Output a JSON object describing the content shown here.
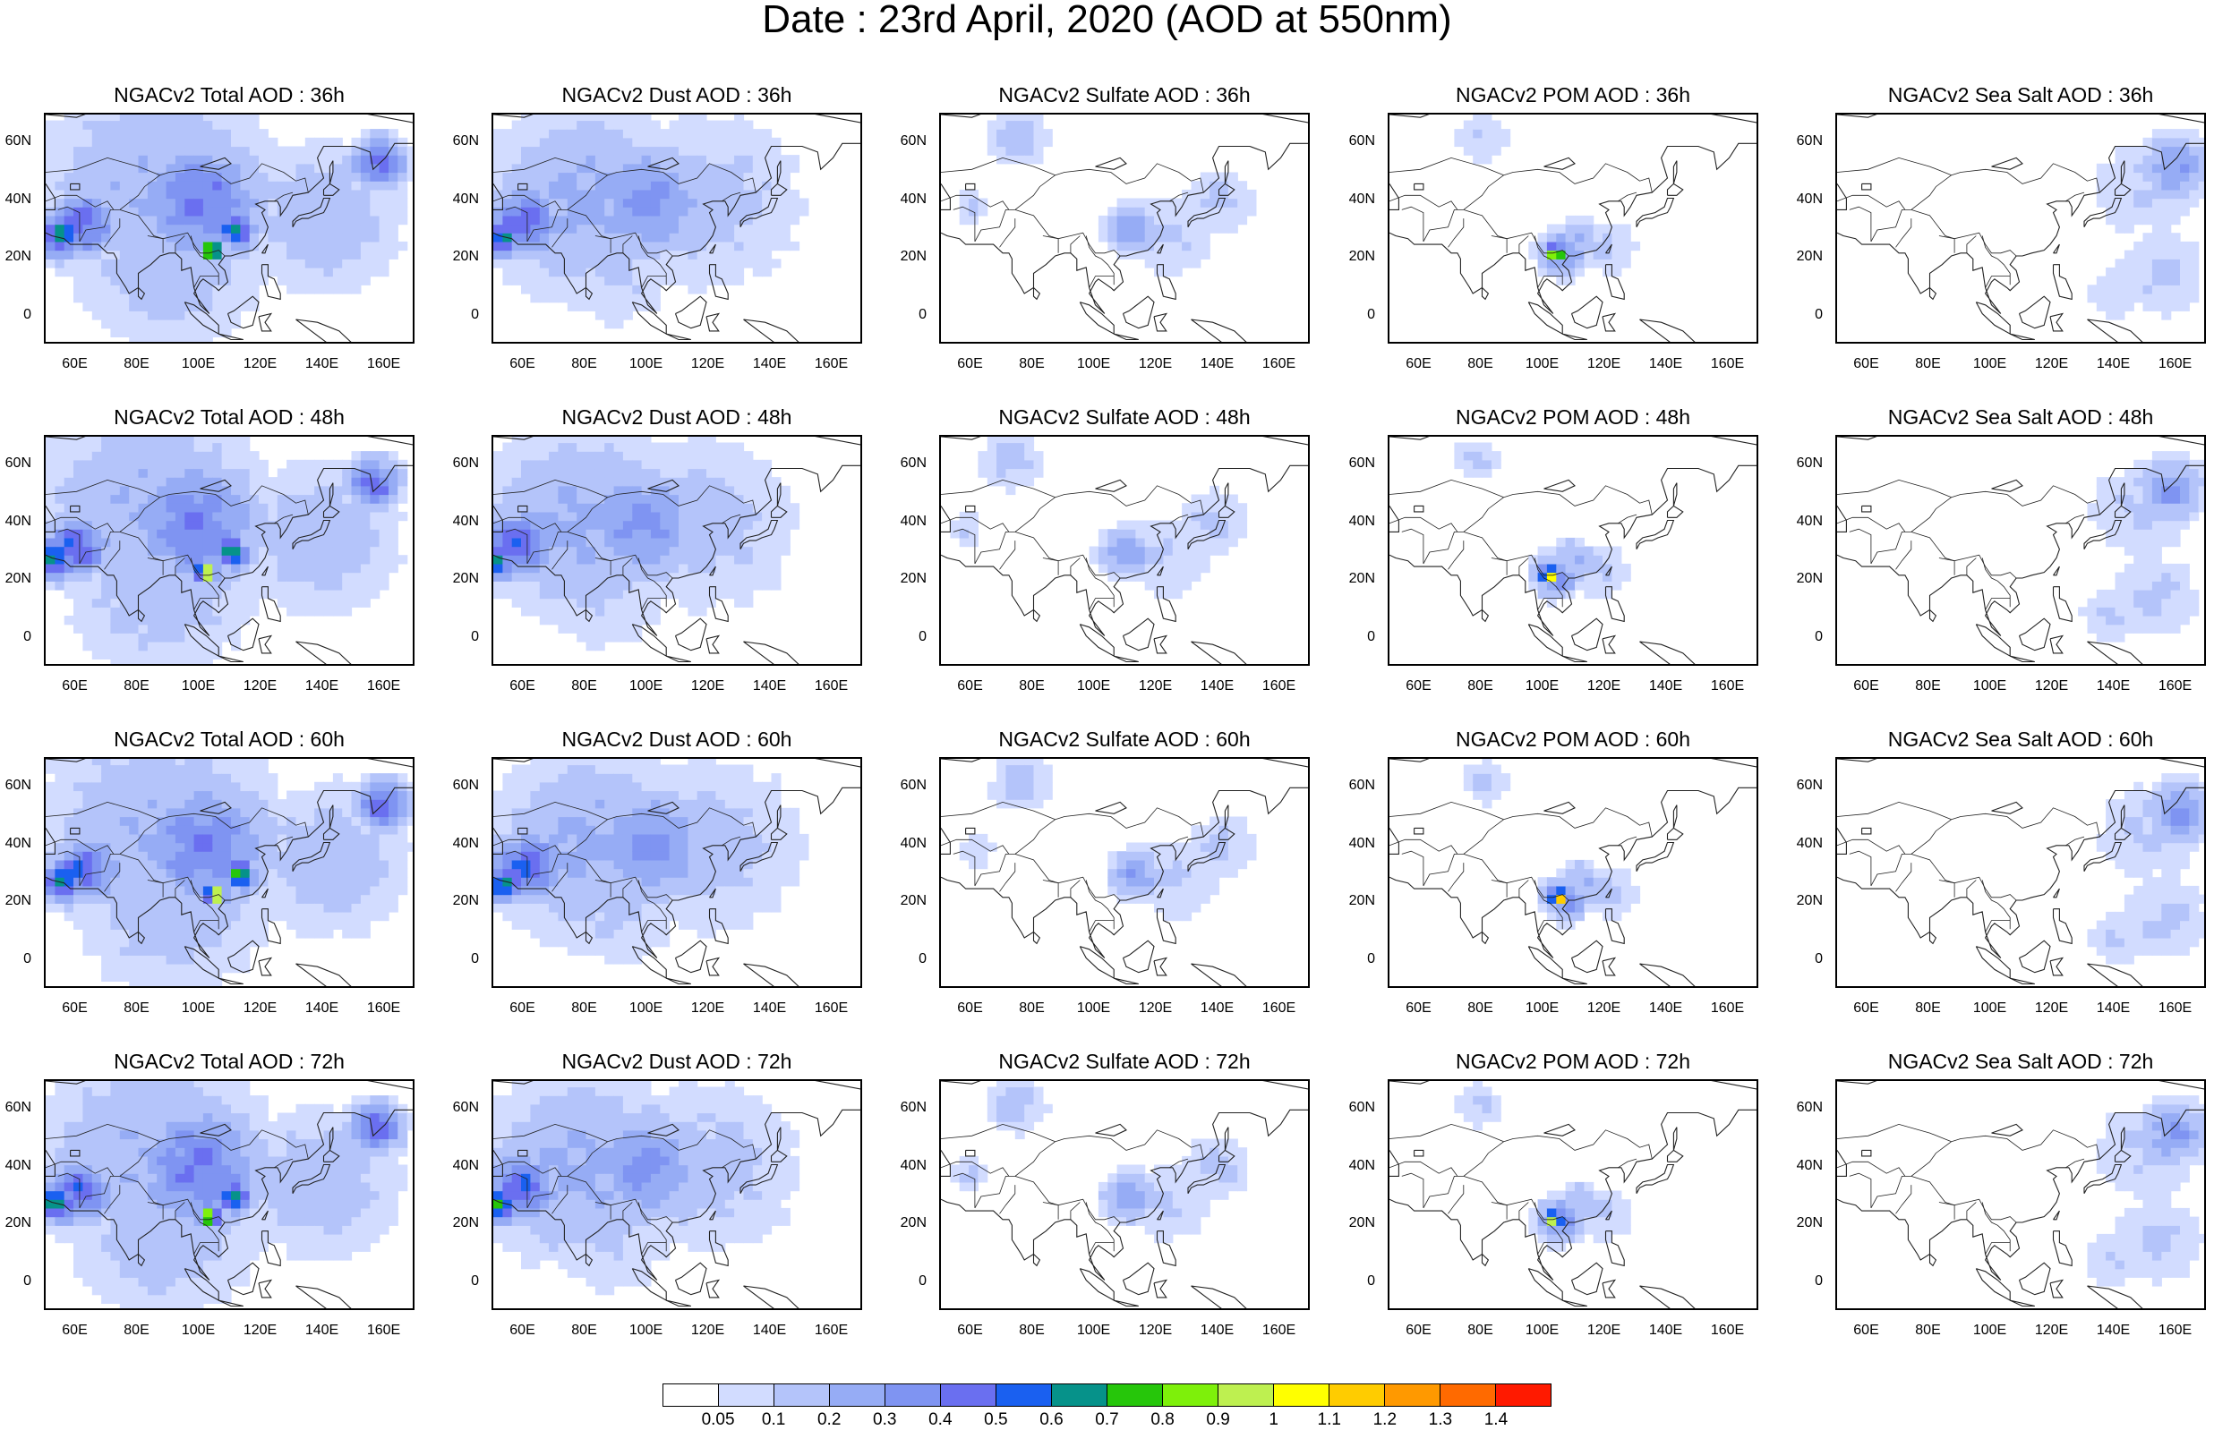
{
  "title": "Date : 23rd April, 2020 (AOD at 550nm)",
  "y_ticks": [
    "60N",
    "40N",
    "20N",
    "0"
  ],
  "y_tick_values": [
    60,
    40,
    20,
    0
  ],
  "x_ticks": [
    "60E",
    "80E",
    "100E",
    "120E",
    "140E",
    "160E"
  ],
  "x_tick_values": [
    60,
    80,
    100,
    120,
    140,
    160
  ],
  "lon_range": [
    50,
    170
  ],
  "lat_range": [
    -10,
    70
  ],
  "colorbar": {
    "labels": [
      "0.05",
      "0.1",
      "0.2",
      "0.3",
      "0.4",
      "0.5",
      "0.6",
      "0.7",
      "0.8",
      "0.9",
      "1",
      "1.1",
      "1.2",
      "1.3",
      "1.4"
    ],
    "colors": [
      "#ffffff",
      "#d2dcff",
      "#b4c4fa",
      "#96acf5",
      "#7f94f2",
      "#6a6ff0",
      "#1a60f0",
      "#06928a",
      "#26c60a",
      "#7ef00a",
      "#bef050",
      "#ffff00",
      "#ffcc00",
      "#ff9900",
      "#ff6a00",
      "#ff1a00"
    ]
  },
  "panels": [
    {
      "title": "NGACv2 Total AOD : 36h"
    },
    {
      "title": "NGACv2 Dust AOD : 36h"
    },
    {
      "title": "NGACv2 Sulfate AOD : 36h"
    },
    {
      "title": "NGACv2 POM AOD : 36h"
    },
    {
      "title": "NGACv2 Sea Salt AOD : 36h"
    },
    {
      "title": "NGACv2 Total AOD : 48h"
    },
    {
      "title": "NGACv2 Dust AOD : 48h"
    },
    {
      "title": "NGACv2 Sulfate AOD : 48h"
    },
    {
      "title": "NGACv2 POM AOD : 48h"
    },
    {
      "title": "NGACv2 Sea Salt AOD : 48h"
    },
    {
      "title": "NGACv2 Total AOD : 60h"
    },
    {
      "title": "NGACv2 Dust AOD : 60h"
    },
    {
      "title": "NGACv2 Sulfate AOD : 60h"
    },
    {
      "title": "NGACv2 POM AOD : 60h"
    },
    {
      "title": "NGACv2 Sea Salt AOD : 60h"
    },
    {
      "title": "NGACv2 Total AOD : 72h"
    },
    {
      "title": "NGACv2 Dust AOD : 72h"
    },
    {
      "title": "NGACv2 Sulfate AOD : 72h"
    },
    {
      "title": "NGACv2 POM AOD : 72h"
    },
    {
      "title": "NGACv2 Sea Salt  AOD : 72h"
    }
  ]
}
